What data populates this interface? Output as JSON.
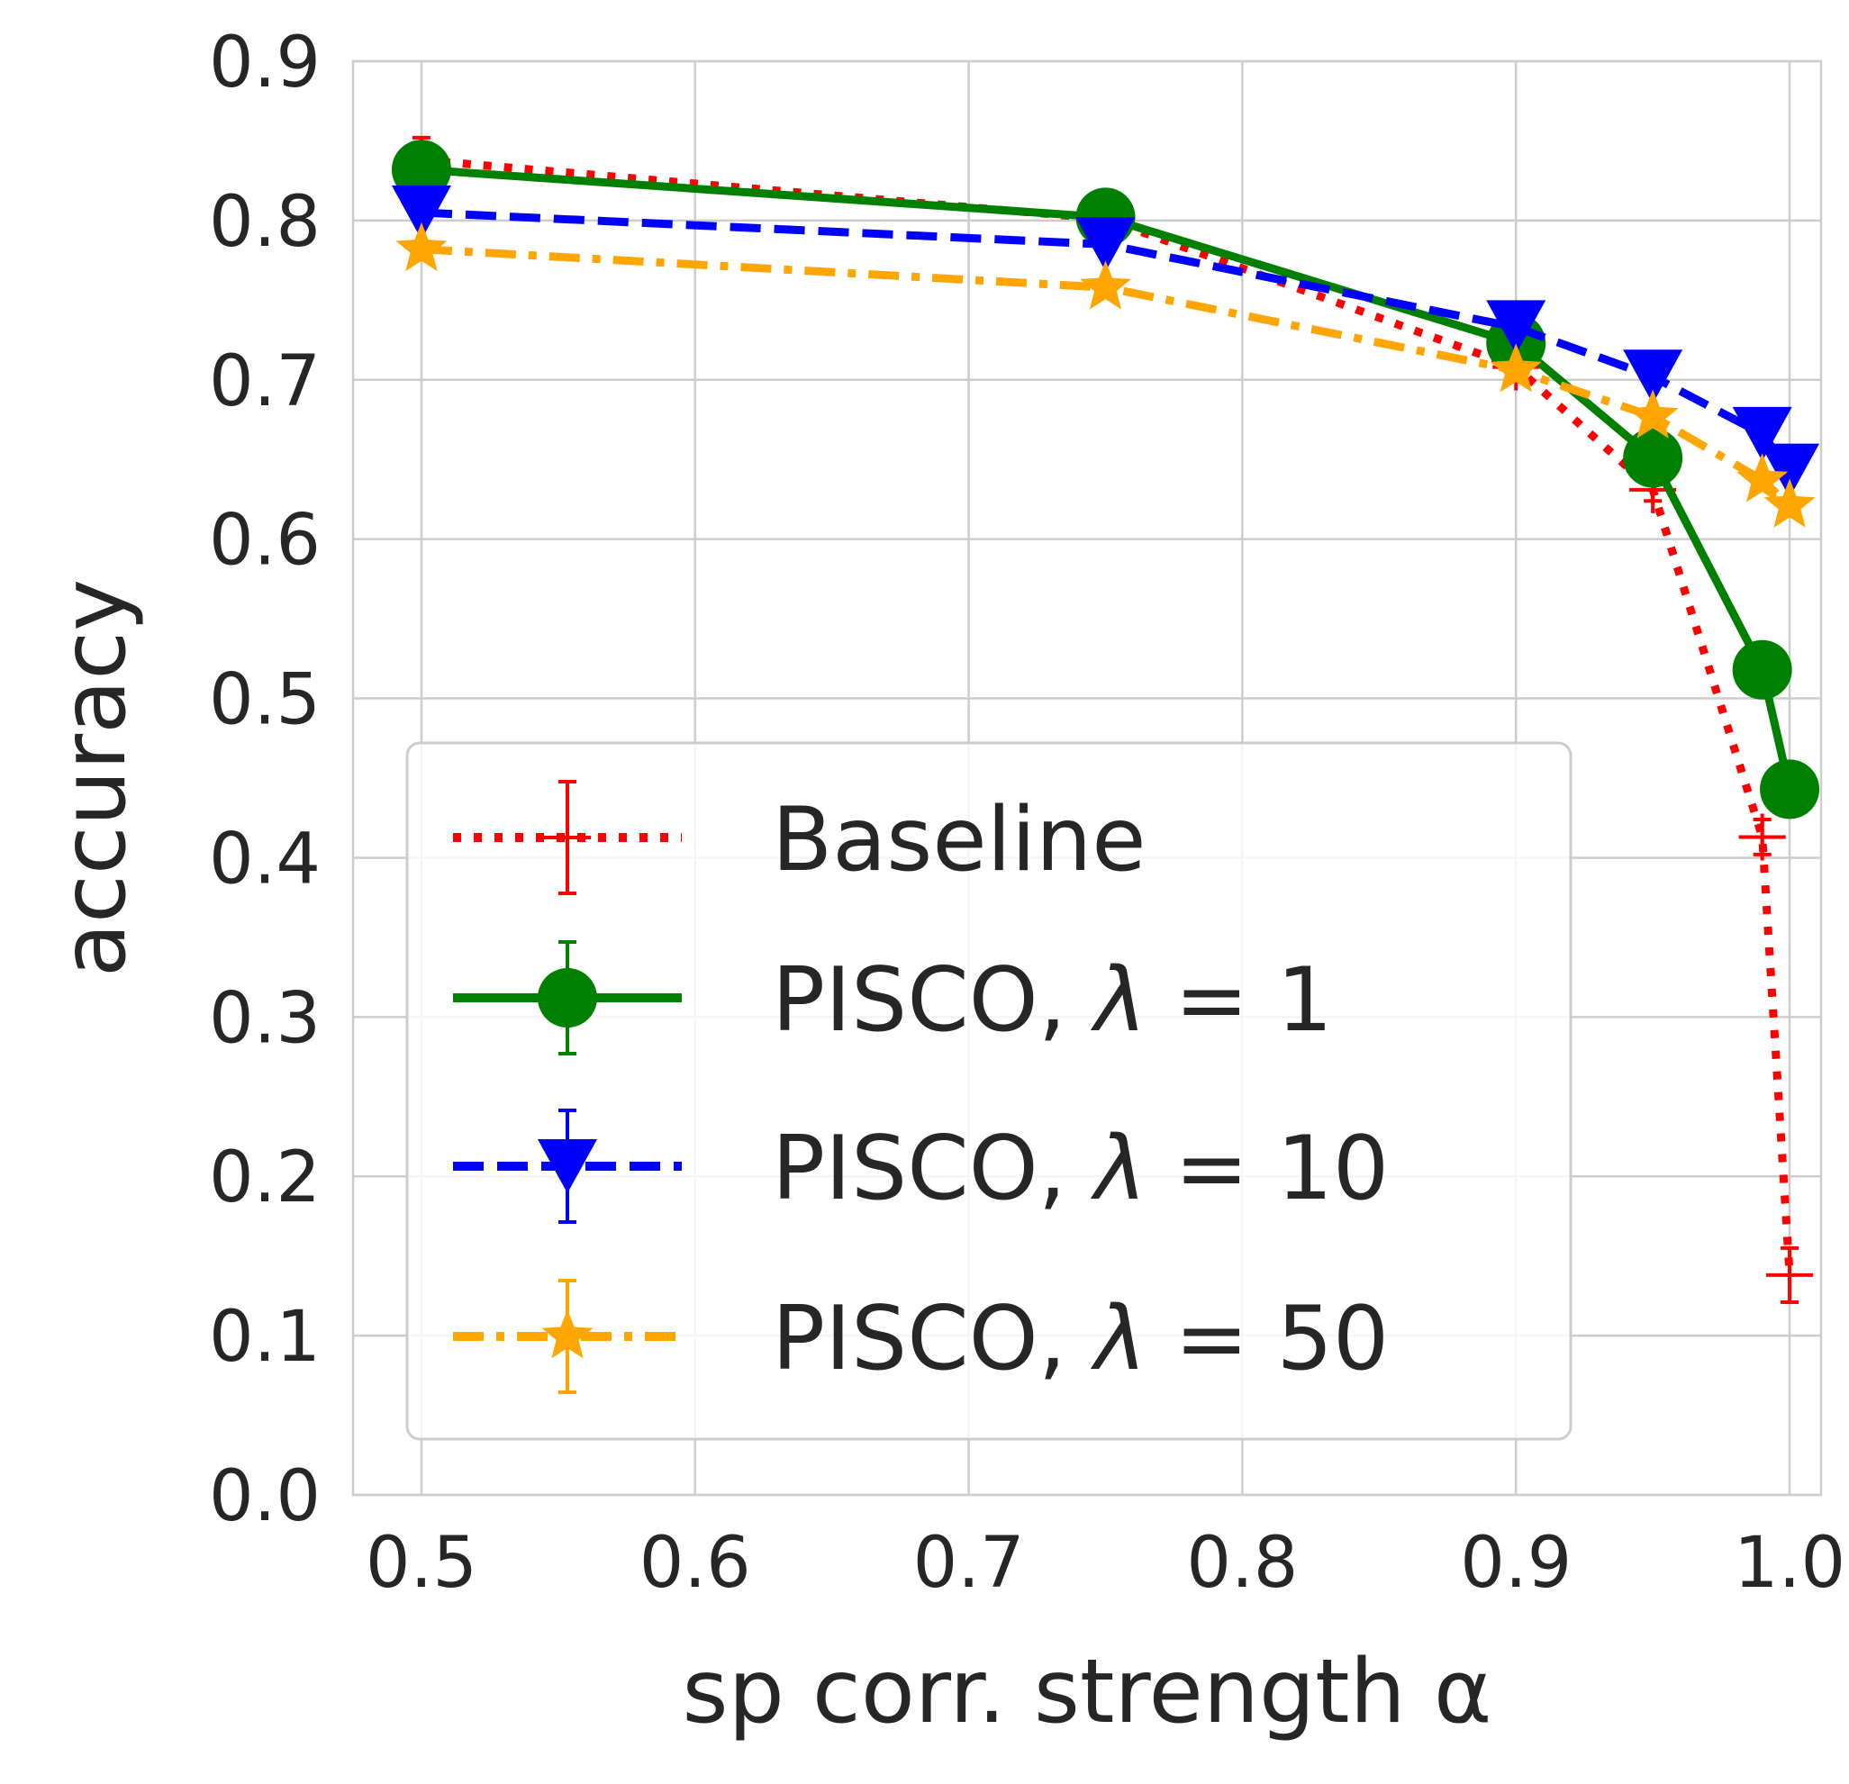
{
  "chart_data": {
    "type": "line",
    "xlabel": "sp corr. strength α",
    "ylabel": "accuracy",
    "xlim": [
      0.475,
      1.0115
    ],
    "ylim": [
      0.0,
      0.9
    ],
    "xticks": [
      0.5,
      0.6,
      0.7,
      0.8,
      0.9,
      1.0
    ],
    "xtick_labels": [
      "0.5",
      "0.6",
      "0.7",
      "0.8",
      "0.9",
      "1.0"
    ],
    "yticks": [
      0.0,
      0.1,
      0.2,
      0.3,
      0.4,
      0.5,
      0.6,
      0.7,
      0.8,
      0.9
    ],
    "ytick_labels": [
      "0.0",
      "0.1",
      "0.2",
      "0.3",
      "0.4",
      "0.5",
      "0.6",
      "0.7",
      "0.8",
      "0.9"
    ],
    "grid": true,
    "legend_position": "lower-left",
    "series": [
      {
        "name": "Baseline",
        "label_main": "Baseline",
        "label_value": "",
        "color": "#ff0000",
        "line_style": "dotted",
        "marker": "plus",
        "x": [
          0.5,
          0.75,
          0.9,
          0.95,
          0.99,
          1.0
        ],
        "y": [
          0.838,
          0.801,
          0.708,
          0.631,
          0.413,
          0.138
        ],
        "yerr": [
          0.014,
          0.004,
          0.006,
          0.007,
          0.011,
          0.017
        ]
      },
      {
        "name": "PISCO, λ = 1",
        "label_main": "PISCO, ",
        "label_value": "1",
        "color": "#008000",
        "line_style": "solid",
        "marker": "circle",
        "x": [
          0.5,
          0.75,
          0.9,
          0.95,
          0.99,
          1.0
        ],
        "y": [
          0.832,
          0.802,
          0.723,
          0.651,
          0.518,
          0.443
        ],
        "yerr": [
          0.003,
          0.003,
          0.003,
          0.004,
          0.004,
          0.004
        ]
      },
      {
        "name": "PISCO, λ = 10",
        "label_main": "PISCO, ",
        "label_value": "10",
        "color": "#0000ff",
        "line_style": "dashed",
        "marker": "triangle-down",
        "x": [
          0.5,
          0.75,
          0.9,
          0.95,
          0.99,
          1.0
        ],
        "y": [
          0.805,
          0.785,
          0.733,
          0.702,
          0.666,
          0.643
        ],
        "yerr": [
          0.003,
          0.003,
          0.003,
          0.003,
          0.003,
          0.003
        ]
      },
      {
        "name": "PISCO, λ = 50",
        "label_main": "PISCO, ",
        "label_value": "50",
        "color": "#ffa500",
        "line_style": "dashdot",
        "marker": "star",
        "x": [
          0.5,
          0.75,
          0.9,
          0.95,
          0.99,
          1.0
        ],
        "y": [
          0.782,
          0.758,
          0.706,
          0.677,
          0.637,
          0.621
        ],
        "yerr": [
          0.003,
          0.003,
          0.003,
          0.003,
          0.003,
          0.003
        ]
      }
    ]
  }
}
